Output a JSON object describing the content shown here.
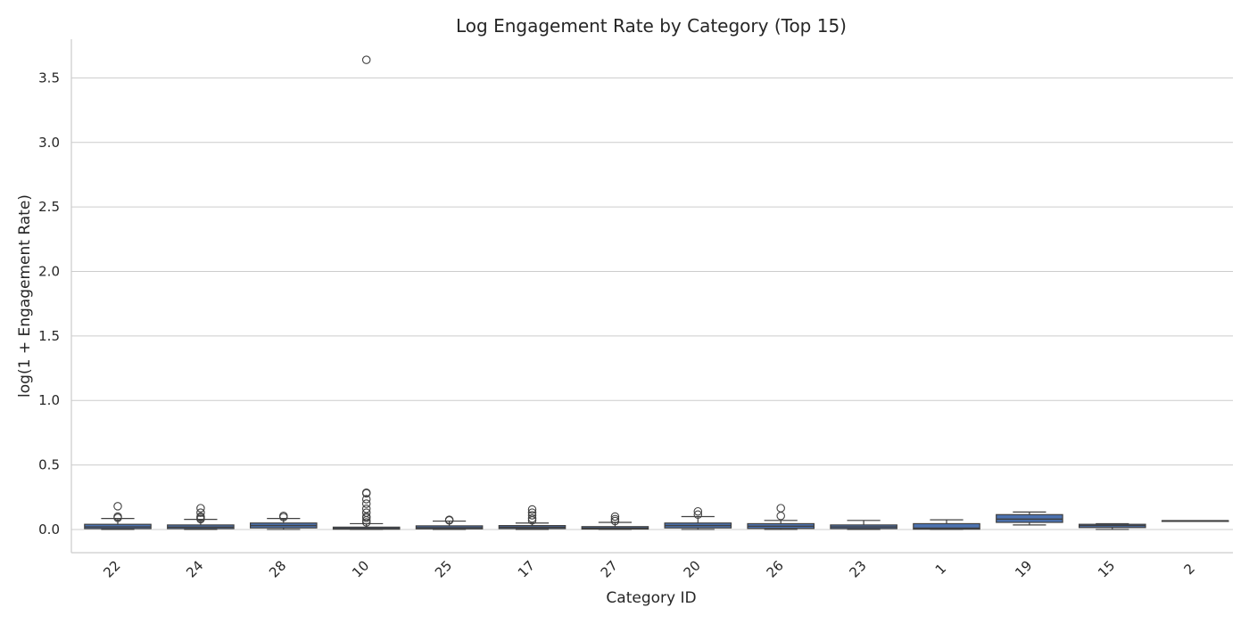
{
  "chart_data": {
    "type": "box",
    "title": "Log Engagement Rate by Category (Top 15)",
    "xlabel": "Category ID",
    "ylabel": "log(1 + Engagement Rate)",
    "ylim": [
      -0.18,
      3.8
    ],
    "yticks": [
      0.0,
      0.5,
      1.0,
      1.5,
      2.0,
      2.5,
      3.0,
      3.5
    ],
    "ytick_labels": [
      "0.0",
      "0.5",
      "1.0",
      "1.5",
      "2.0",
      "2.5",
      "3.0",
      "3.5"
    ],
    "grid": true,
    "box_color": "#4c72b0",
    "edge_color": "#404040",
    "categories": [
      "22",
      "24",
      "28",
      "10",
      "25",
      "17",
      "27",
      "20",
      "26",
      "23",
      "1",
      "19",
      "15",
      "2"
    ],
    "boxes": [
      {
        "category": "22",
        "whislo": 0.0,
        "q1": 0.007,
        "med": 0.02,
        "q3": 0.04,
        "whishi": 0.085,
        "fliers": [
          0.09,
          0.1,
          0.18
        ]
      },
      {
        "category": "24",
        "whislo": 0.0,
        "q1": 0.007,
        "med": 0.018,
        "q3": 0.035,
        "whishi": 0.078,
        "fliers": [
          0.08,
          0.09,
          0.1,
          0.13,
          0.165
        ]
      },
      {
        "category": "28",
        "whislo": 0.0,
        "q1": 0.012,
        "med": 0.03,
        "q3": 0.05,
        "whishi": 0.085,
        "fliers": [
          0.095,
          0.105
        ]
      },
      {
        "category": "10",
        "whislo": 0.0,
        "q1": 0.002,
        "med": 0.008,
        "q3": 0.018,
        "whishi": 0.045,
        "fliers": [
          0.055,
          0.07,
          0.09,
          0.1,
          0.13,
          0.16,
          0.2,
          0.235,
          0.28,
          0.285,
          3.64
        ]
      },
      {
        "category": "25",
        "whislo": 0.0,
        "q1": 0.005,
        "med": 0.014,
        "q3": 0.028,
        "whishi": 0.065,
        "fliers": [
          0.07,
          0.075
        ]
      },
      {
        "category": "17",
        "whislo": 0.0,
        "q1": 0.007,
        "med": 0.017,
        "q3": 0.03,
        "whishi": 0.05,
        "fliers": [
          0.07,
          0.085,
          0.11,
          0.13,
          0.155
        ]
      },
      {
        "category": "27",
        "whislo": 0.0,
        "q1": 0.003,
        "med": 0.01,
        "q3": 0.022,
        "whishi": 0.055,
        "fliers": [
          0.065,
          0.08,
          0.1
        ]
      },
      {
        "category": "20",
        "whislo": 0.0,
        "q1": 0.012,
        "med": 0.03,
        "q3": 0.05,
        "whishi": 0.1,
        "fliers": [
          0.115,
          0.14
        ]
      },
      {
        "category": "26",
        "whislo": 0.0,
        "q1": 0.008,
        "med": 0.025,
        "q3": 0.045,
        "whishi": 0.07,
        "fliers": [
          0.105,
          0.165
        ]
      },
      {
        "category": "23",
        "whislo": 0.0,
        "q1": 0.007,
        "med": 0.02,
        "q3": 0.035,
        "whishi": 0.07,
        "fliers": []
      },
      {
        "category": "1",
        "whislo": 0.0,
        "q1": 0.002,
        "med": 0.01,
        "q3": 0.045,
        "whishi": 0.075,
        "fliers": []
      },
      {
        "category": "19",
        "whislo": 0.035,
        "q1": 0.055,
        "med": 0.08,
        "q3": 0.115,
        "whishi": 0.135,
        "fliers": []
      },
      {
        "category": "15",
        "whislo": 0.0,
        "q1": 0.015,
        "med": 0.03,
        "q3": 0.04,
        "whishi": 0.045,
        "fliers": []
      },
      {
        "category": "2",
        "whislo": 0.068,
        "q1": 0.068,
        "med": 0.068,
        "q3": 0.068,
        "whishi": 0.068,
        "fliers": []
      }
    ]
  }
}
